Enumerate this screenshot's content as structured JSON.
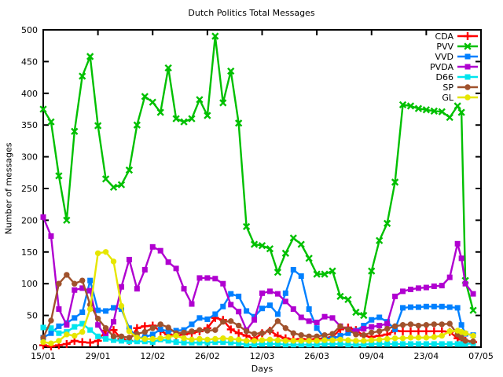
{
  "chart_data": {
    "type": "line",
    "title": "Dutch Politics Total Messages",
    "xlabel": "Days",
    "ylabel": "Number of messages",
    "grid": false,
    "legend_position": "top-right-inside",
    "ylim": [
      0,
      500
    ],
    "y_tick_step": 50,
    "y_tick_labels": [
      "0",
      "50",
      "100",
      "150",
      "200",
      "250",
      "300",
      "350",
      "400",
      "450",
      "500"
    ],
    "xlim_days": [
      0,
      112
    ],
    "x_tick_days": [
      0,
      14,
      28,
      42,
      56,
      70,
      84,
      98,
      112
    ],
    "x_tick_labels": [
      "15/01",
      "29/01",
      "12/02",
      "26/02",
      "12/03",
      "26/03",
      "09/04",
      "23/04",
      "07/05"
    ],
    "days": [
      0,
      2,
      4,
      6,
      8,
      10,
      12,
      14,
      16,
      18,
      20,
      22,
      24,
      26,
      28,
      30,
      32,
      34,
      36,
      38,
      40,
      42,
      44,
      46,
      48,
      50,
      52,
      54,
      56,
      58,
      60,
      62,
      64,
      66,
      68,
      70,
      72,
      74,
      76,
      78,
      80,
      82,
      84,
      86,
      88,
      90,
      92,
      94,
      96,
      98,
      100,
      102,
      104,
      106,
      107,
      108,
      110
    ],
    "series": [
      {
        "name": "CDA",
        "color": "#ff0000",
        "marker": "plus",
        "values": [
          3,
          1,
          3,
          5,
          10,
          8,
          7,
          10,
          26,
          27,
          13,
          10,
          30,
          33,
          34,
          25,
          20,
          18,
          20,
          22,
          25,
          30,
          46,
          43,
          28,
          22,
          18,
          13,
          22,
          26,
          18,
          14,
          12,
          13,
          12,
          13,
          14,
          16,
          28,
          31,
          27,
          18,
          16,
          18,
          20,
          26,
          25,
          25,
          25,
          25,
          25,
          25,
          24,
          14,
          12,
          10,
          8
        ]
      },
      {
        "name": "PVV",
        "color": "#00c000",
        "marker": "x",
        "values": [
          375,
          355,
          270,
          200,
          340,
          427,
          458,
          349,
          265,
          252,
          256,
          279,
          350,
          395,
          386,
          370,
          440,
          360,
          355,
          360,
          390,
          365,
          490,
          385,
          435,
          353,
          190,
          162,
          160,
          155,
          118,
          148,
          172,
          162,
          140,
          115,
          115,
          120,
          80,
          75,
          55,
          50,
          120,
          168,
          195,
          260,
          382,
          380,
          376,
          374,
          372,
          371,
          362,
          380,
          370,
          105,
          58
        ]
      },
      {
        "name": "VVD",
        "color": "#0080ff",
        "marker": "square",
        "values": [
          15,
          22,
          33,
          38,
          46,
          55,
          105,
          58,
          57,
          62,
          60,
          30,
          14,
          16,
          20,
          28,
          25,
          26,
          27,
          36,
          46,
          44,
          52,
          64,
          84,
          80,
          57,
          48,
          61,
          66,
          52,
          85,
          122,
          112,
          60,
          30,
          14,
          13,
          18,
          22,
          26,
          34,
          43,
          47,
          40,
          28,
          62,
          63,
          63,
          64,
          64,
          64,
          63,
          62,
          35,
          21,
          19
        ]
      },
      {
        "name": "PVDA",
        "color": "#b000d0",
        "marker": "square",
        "values": [
          205,
          175,
          60,
          35,
          90,
          93,
          89,
          35,
          16,
          40,
          95,
          138,
          92,
          122,
          158,
          152,
          134,
          124,
          92,
          68,
          109,
          109,
          108,
          100,
          67,
          56,
          27,
          43,
          85,
          88,
          84,
          72,
          60,
          47,
          41,
          39,
          48,
          46,
          33,
          28,
          25,
          29,
          32,
          34,
          37,
          80,
          88,
          91,
          93,
          94,
          96,
          97,
          110,
          163,
          140,
          100,
          84
        ]
      },
      {
        "name": "D66",
        "color": "#00e5ee",
        "marker": "square",
        "values": [
          31,
          30,
          22,
          24,
          32,
          37,
          27,
          17,
          13,
          11,
          10,
          9,
          9,
          9,
          8,
          12,
          10,
          8,
          7,
          7,
          7,
          7,
          8,
          8,
          7,
          6,
          4,
          4,
          5,
          5,
          5,
          4,
          4,
          4,
          4,
          4,
          5,
          5,
          5,
          4,
          4,
          4,
          5,
          5,
          5,
          5,
          5,
          5,
          5,
          5,
          5,
          5,
          5,
          5,
          5,
          5,
          6
        ]
      },
      {
        "name": "SP",
        "color": "#a0522d",
        "marker": "circle",
        "values": [
          15,
          42,
          100,
          114,
          100,
          105,
          67,
          45,
          30,
          17,
          17,
          15,
          21,
          24,
          30,
          36,
          31,
          22,
          23,
          25,
          27,
          26,
          27,
          40,
          41,
          34,
          25,
          21,
          22,
          26,
          41,
          30,
          22,
          19,
          17,
          17,
          19,
          21,
          33,
          28,
          20,
          19,
          23,
          25,
          29,
          33,
          35,
          36,
          34,
          35,
          36,
          36,
          37,
          20,
          15,
          10,
          9
        ]
      },
      {
        "name": "GL",
        "color": "#e6e600",
        "marker": "circle",
        "values": [
          8,
          6,
          10,
          20,
          18,
          24,
          60,
          148,
          150,
          135,
          65,
          25,
          15,
          13,
          13,
          14,
          16,
          18,
          14,
          12,
          13,
          12,
          13,
          14,
          13,
          12,
          10,
          10,
          11,
          12,
          11,
          10,
          10,
          10,
          10,
          10,
          11,
          11,
          12,
          11,
          10,
          10,
          11,
          12,
          13,
          14,
          14,
          15,
          15,
          15,
          16,
          18,
          25,
          26,
          24,
          22,
          18
        ]
      }
    ]
  }
}
